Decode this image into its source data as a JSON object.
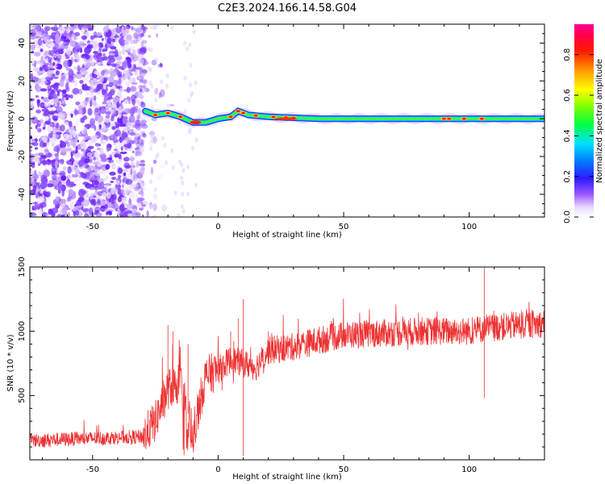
{
  "title": "C2E3.2024.166.14.58.G04",
  "chart_data": [
    {
      "type": "heatmap",
      "xlabel": "Height of straight line (km)",
      "ylabel": "Frequency (Hz)",
      "xlim": [
        -75,
        130
      ],
      "ylim": [
        -52,
        50
      ],
      "xticks": [
        -50,
        0,
        50,
        100
      ],
      "yticks": [
        -40,
        -20,
        0,
        20,
        40
      ],
      "colorbar": {
        "label": "Normalized spectral amplitude",
        "range": [
          0,
          0.95
        ],
        "ticks": [
          0.0,
          0.2,
          0.4,
          0.6,
          0.8
        ]
      },
      "ridge": {
        "x": [
          -29,
          -25,
          -20,
          -15,
          -10,
          -5,
          0,
          5,
          8,
          12,
          20,
          40,
          60,
          80,
          100,
          105,
          110,
          130
        ],
        "freq": [
          4,
          2,
          3,
          1,
          -2,
          -2,
          0,
          1,
          4,
          2,
          1,
          0,
          0,
          0,
          0,
          0,
          0,
          0
        ],
        "peak_x": [
          -25,
          -20,
          -15,
          -10,
          -8,
          5,
          8,
          10,
          15,
          22,
          27,
          30,
          90,
          92,
          98,
          105
        ]
      },
      "noise_region": {
        "x": [
          -75,
          -29
        ],
        "freq": [
          -52,
          50
        ]
      }
    },
    {
      "type": "line",
      "xlabel": "Height of straight line (km)",
      "ylabel": "SNR (10 * v/v)",
      "xlim": [
        -75,
        130
      ],
      "ylim": [
        0,
        1500
      ],
      "xticks": [
        -50,
        0,
        50,
        100
      ],
      "yticks": [
        500,
        1000,
        1500
      ],
      "series": [
        {
          "color": "#ee3333",
          "x": [
            -75,
            -60,
            -45,
            -30,
            -25,
            -20,
            -15,
            -10,
            -5,
            0,
            5,
            10,
            15,
            20,
            30,
            40,
            50,
            60,
            80,
            100,
            106,
            120,
            130
          ],
          "y": [
            150,
            160,
            170,
            180,
            300,
            550,
            600,
            200,
            650,
            700,
            780,
            750,
            720,
            850,
            880,
            930,
            970,
            980,
            1000,
            1000,
            1020,
            1050,
            1060
          ],
          "spikes_x": [
            -20,
            -18,
            -12,
            5,
            8,
            10,
            20,
            106
          ],
          "spikes_y": [
            1050,
            1000,
            900,
            1000,
            1100,
            1250,
            1000,
            1500
          ]
        }
      ]
    }
  ]
}
